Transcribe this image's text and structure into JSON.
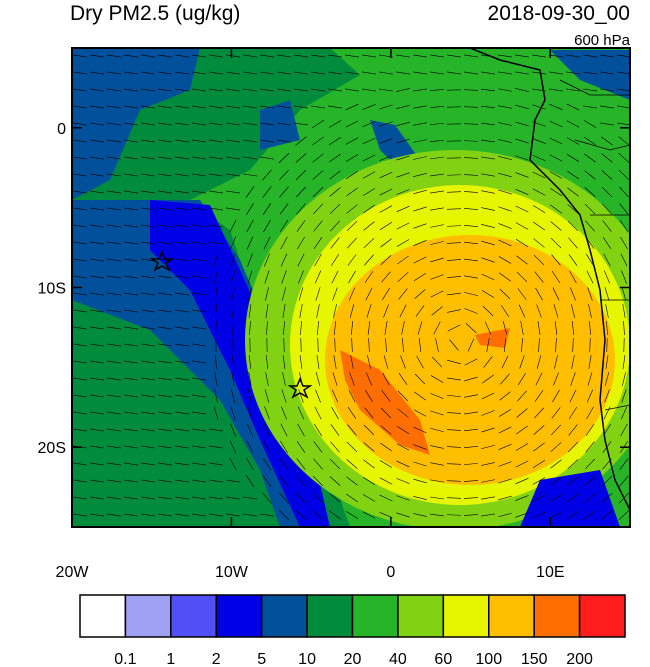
{
  "chart_data": {
    "type": "map",
    "title": "Dry PM2.5 (ug/kg)",
    "date": "2018-09-30_00",
    "level": "600 hPa",
    "xlim": [
      -20,
      15
    ],
    "ylim": [
      -25,
      5
    ],
    "xticks": [
      {
        "value": -20,
        "label": "20W"
      },
      {
        "value": -10,
        "label": "10W"
      },
      0,
      {
        "value": 10,
        "label": "10E"
      }
    ],
    "yticks": [
      0,
      {
        "value": -10,
        "label": "10S"
      },
      {
        "value": -20,
        "label": "20S"
      }
    ],
    "colorbar": {
      "levels": [
        0.1,
        1,
        2,
        5,
        10,
        20,
        40,
        60,
        100,
        150,
        200
      ],
      "colors": [
        "#ffffff",
        "#a0a0f5",
        "#5050f5",
        "#0000e6",
        "#00509b",
        "#008c3c",
        "#28b428",
        "#82d214",
        "#e6f500",
        "#ffbe00",
        "#ff6e00",
        "#ff1e1e"
      ]
    }
  }
}
